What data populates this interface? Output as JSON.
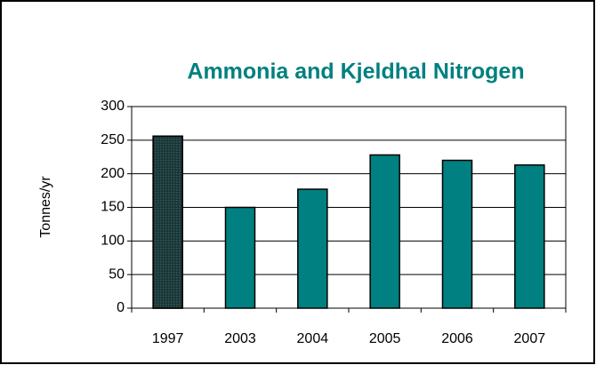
{
  "chart_data": {
    "type": "bar",
    "title": "Ammonia and Kjeldhal Nitrogen",
    "y_label": "Tonnes/yr",
    "categories": [
      "1997",
      "2003",
      "2004",
      "2005",
      "2006",
      "2007"
    ],
    "values": [
      256,
      150,
      177,
      228,
      220,
      213
    ],
    "colors": [
      "#1f4a48",
      "#008080",
      "#008080",
      "#008080",
      "#008080",
      "#008080"
    ],
    "ylim": [
      0,
      300
    ],
    "yticks": [
      0,
      50,
      100,
      150,
      200,
      250,
      300
    ],
    "grid": true
  }
}
